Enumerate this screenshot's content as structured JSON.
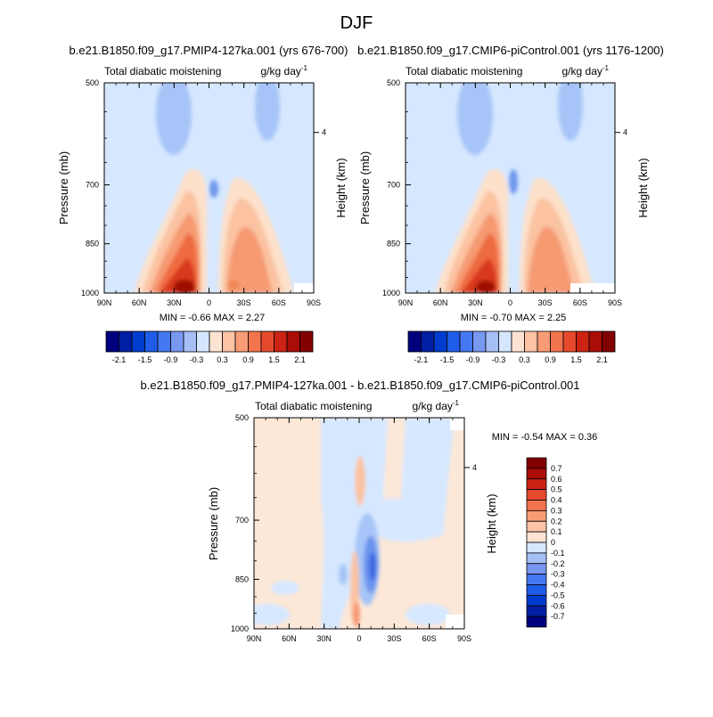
{
  "page": {
    "title": "DJF",
    "diff_title": "b.e21.B1850.f09_g17.PMIP4-127ka.001 - b.e21.B1850.f09_g17.CMIP6-piControl.001"
  },
  "colors": {
    "blue_dark": "#00007f",
    "blue_mid": "#3f6fe8",
    "blue_light": "#cfe3ff",
    "red_light": "#fde4d2",
    "red_mid": "#f08050",
    "red_dark": "#820000"
  },
  "chart_data": [
    {
      "id": "panel-left",
      "type": "heatmap",
      "title": "b.e21.B1850.f09_g17.PMIP4-127ka.001 (yrs 676-700)",
      "left_label": "Total diabatic moistening",
      "right_label": "g/kg day",
      "unit_sup": "-1",
      "ylabel": "Pressure (mb)",
      "ylabel_right": "Height (km)",
      "x_ticks": [
        "90N",
        "60N",
        "30N",
        "0",
        "30S",
        "60S",
        "90S"
      ],
      "y_ticks": [
        "500",
        "700",
        "850",
        "1000"
      ],
      "y_right_ticks": [
        "4"
      ],
      "xlim": [
        "90N",
        "90S"
      ],
      "ylim": [
        1000,
        500
      ],
      "y_scale": "log",
      "stats": "MIN =  -0.66  MAX =  2.27",
      "colorbar_labels": [
        "-2.1",
        "-1.5",
        "-0.9",
        "-0.3",
        "0.3",
        "0.9",
        "1.5",
        "2.1"
      ],
      "colorbar_levels": [
        -2.1,
        -1.8,
        -1.5,
        -1.2,
        -0.9,
        -0.6,
        -0.3,
        0,
        0.3,
        0.6,
        0.9,
        1.2,
        1.5,
        1.8,
        2.1
      ],
      "colorbar_placement": "bottom",
      "min": -0.66,
      "max": 2.27
    },
    {
      "id": "panel-right",
      "type": "heatmap",
      "title": "b.e21.B1850.f09_g17.CMIP6-piControl.001 (yrs 1176-1200)",
      "left_label": "Total diabatic moistening",
      "right_label": "g/kg day",
      "unit_sup": "-1",
      "ylabel": "Pressure (mb)",
      "ylabel_right": "Height (km)",
      "x_ticks": [
        "90N",
        "60N",
        "30N",
        "0",
        "30S",
        "60S",
        "90S"
      ],
      "y_ticks": [
        "500",
        "700",
        "850",
        "1000"
      ],
      "y_right_ticks": [
        "4"
      ],
      "xlim": [
        "90N",
        "90S"
      ],
      "ylim": [
        1000,
        500
      ],
      "y_scale": "log",
      "stats": "MIN =  -0.70  MAX =  2.25",
      "colorbar_labels": [
        "-2.1",
        "-1.5",
        "-0.9",
        "-0.3",
        "0.3",
        "0.9",
        "1.5",
        "2.1"
      ],
      "colorbar_levels": [
        -2.1,
        -1.8,
        -1.5,
        -1.2,
        -0.9,
        -0.6,
        -0.3,
        0,
        0.3,
        0.6,
        0.9,
        1.2,
        1.5,
        1.8,
        2.1
      ],
      "colorbar_placement": "bottom",
      "min": -0.7,
      "max": 2.25
    },
    {
      "id": "panel-diff",
      "type": "heatmap",
      "title": "",
      "left_label": "Total diabatic moistening",
      "right_label": "g/kg day",
      "unit_sup": "-1",
      "ylabel": "Pressure (mb)",
      "ylabel_right": "Height (km)",
      "x_ticks": [
        "90N",
        "60N",
        "30N",
        "0",
        "30S",
        "60S",
        "90S"
      ],
      "y_ticks": [
        "500",
        "700",
        "850",
        "1000"
      ],
      "y_right_ticks": [
        "4"
      ],
      "xlim": [
        "90N",
        "90S"
      ],
      "ylim": [
        1000,
        500
      ],
      "y_scale": "log",
      "stats": "MIN =  -0.54  MAX =   0.36",
      "colorbar_labels": [
        "0.7",
        "0.6",
        "0.5",
        "0.4",
        "0.3",
        "0.2",
        "0.1",
        "0",
        "-0.1",
        "-0.2",
        "-0.3",
        "-0.4",
        "-0.5",
        "-0.6",
        "-0.7"
      ],
      "colorbar_levels": [
        -0.7,
        -0.6,
        -0.5,
        -0.4,
        -0.3,
        -0.2,
        -0.1,
        0,
        0.1,
        0.2,
        0.3,
        0.4,
        0.5,
        0.6,
        0.7
      ],
      "colorbar_placement": "right",
      "min": -0.54,
      "max": 0.36
    }
  ]
}
